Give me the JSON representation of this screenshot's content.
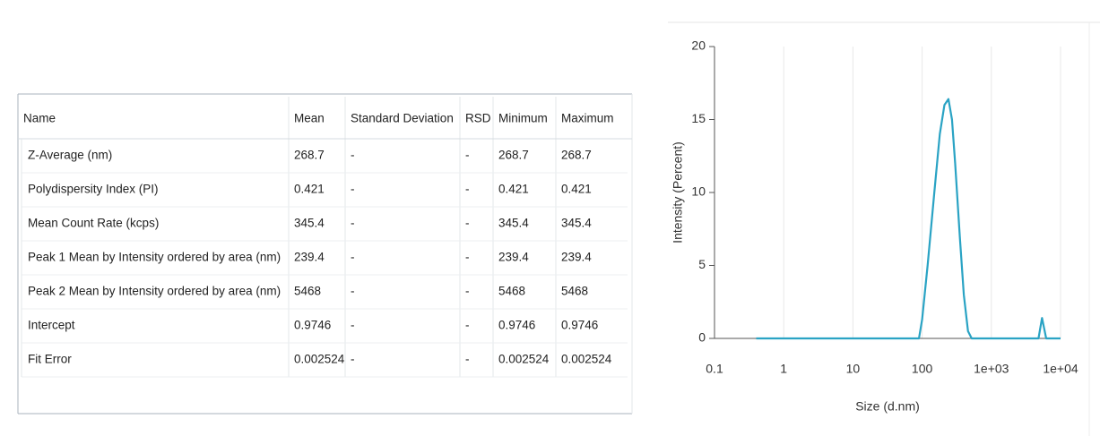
{
  "table": {
    "header": [
      "Name",
      "Mean",
      "Standard Deviation",
      "RSD",
      "Minimum",
      "Maximum"
    ],
    "rows": [
      [
        "Z-Average (nm)",
        "268.7",
        "-",
        "-",
        "268.7",
        "268.7"
      ],
      [
        "Polydispersity Index (PI)",
        "0.421",
        "-",
        "-",
        "0.421",
        "0.421"
      ],
      [
        "Mean Count Rate (kcps)",
        "345.4",
        "-",
        "-",
        "345.4",
        "345.4"
      ],
      [
        "Peak 1 Mean by Intensity ordered by area (nm)",
        "239.4",
        "-",
        "-",
        "239.4",
        "239.4"
      ],
      [
        "Peak 2 Mean by Intensity ordered by area (nm)",
        "5468",
        "-",
        "-",
        "5468",
        "5468"
      ],
      [
        "Intercept",
        "0.9746",
        "-",
        "-",
        "0.9746",
        "0.9746"
      ],
      [
        "Fit Error",
        "0.002524",
        "-",
        "-",
        "0.002524",
        "0.002524"
      ]
    ]
  },
  "chart_data": {
    "type": "line",
    "x_label": "Size (d.nm)",
    "y_label": "Intensity (Percent)",
    "x_scale": "log",
    "x_grid": true,
    "color": "#2aa3c4",
    "xlim": [
      0.1,
      10000
    ],
    "xticks": [
      0.1,
      1,
      10,
      100,
      {
        "value": 1000,
        "label": "1e+03"
      },
      {
        "value": 10000,
        "label": "1e+04"
      }
    ],
    "ylim": [
      0,
      20
    ],
    "yticks": [
      0,
      5,
      10,
      15,
      20
    ],
    "x": [
      0.4,
      1,
      10,
      90,
      100,
      120,
      150,
      180,
      210,
      240,
      270,
      300,
      350,
      400,
      460,
      520,
      1000,
      4800,
      5400,
      6200,
      10000
    ],
    "values": [
      0,
      0,
      0,
      0,
      1.3,
      5,
      10,
      14,
      16,
      16.4,
      15,
      12,
      7,
      3,
      0.5,
      0,
      0,
      0,
      1.4,
      0,
      0
    ]
  }
}
